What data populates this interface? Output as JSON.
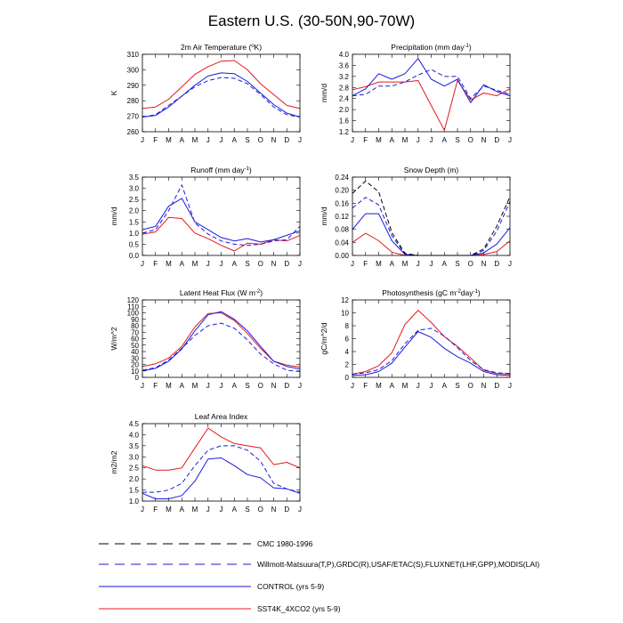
{
  "title": "Eastern U.S. (30-50N,90-70W)",
  "colors": {
    "red": "#e31a1c",
    "blue": "#1a1adf",
    "black": "#000000"
  },
  "months": [
    "J",
    "F",
    "M",
    "A",
    "M",
    "J",
    "J",
    "A",
    "S",
    "O",
    "N",
    "D",
    "J"
  ],
  "legend": [
    {
      "label": "CMC 1980-1996",
      "color": "#000000",
      "dashed": true
    },
    {
      "label": "Willmott-Matsuura(T,P),GRDC(R),USAF/ETAC(S),FLUXNET(LHF,GPP),MODIS(LAI)",
      "color": "#1a1adf",
      "dashed": true
    },
    {
      "label": "CONTROL (yrs 5-9)",
      "color": "#1a1adf",
      "dashed": false
    },
    {
      "label": "SST4K_4XCO2 (yrs 5-9)",
      "color": "#e31a1c",
      "dashed": false
    }
  ],
  "chart_data": [
    {
      "type": "line",
      "title": "2m Air Temperature (",
      "title_sup": "o",
      "title_tail": "K)",
      "ylabel": "K",
      "ylim": [
        260,
        310
      ],
      "yticks": [
        260,
        270,
        280,
        290,
        300,
        310
      ],
      "series": [
        {
          "name": "SST4K_4XCO2 (yrs 5-9)",
          "color": "red",
          "dashed": false,
          "values": [
            275,
            276,
            281,
            289,
            297,
            302,
            305.5,
            306,
            300,
            291,
            284,
            277,
            275
          ]
        },
        {
          "name": "CONTROL (yrs 5-9)",
          "color": "blue",
          "dashed": false,
          "values": [
            269.5,
            270.5,
            276,
            283,
            290,
            296,
            298,
            297.5,
            292.5,
            285,
            277.5,
            272,
            269.5
          ]
        },
        {
          "name": "Willmott-Matsuura",
          "color": "blue",
          "dashed": true,
          "values": [
            269.5,
            271,
            277,
            283,
            289,
            293,
            295,
            294.5,
            291,
            284,
            276,
            271,
            269.5
          ]
        }
      ]
    },
    {
      "type": "line",
      "title": "Precipitation (mm day",
      "title_sup": "-1",
      "title_tail": ")",
      "ylabel": "mm/d",
      "ylim": [
        1.2,
        4.0
      ],
      "yticks": [
        1.2,
        1.6,
        2.0,
        2.4,
        2.8,
        3.2,
        3.6,
        4.0
      ],
      "series": [
        {
          "name": "SST4K_4XCO2 (yrs 5-9)",
          "color": "red",
          "dashed": false,
          "values": [
            2.72,
            2.83,
            3.0,
            3.0,
            3.0,
            3.05,
            2.15,
            1.25,
            3.05,
            2.35,
            2.6,
            2.5,
            2.75
          ]
        },
        {
          "name": "CONTROL (yrs 5-9)",
          "color": "blue",
          "dashed": false,
          "values": [
            2.5,
            2.75,
            3.3,
            3.1,
            3.3,
            3.85,
            3.1,
            2.85,
            3.1,
            2.25,
            2.9,
            2.65,
            2.5
          ]
        },
        {
          "name": "Willmott-Matsuura",
          "color": "blue",
          "dashed": true,
          "values": [
            2.5,
            2.55,
            2.85,
            2.85,
            3.0,
            3.25,
            3.45,
            3.2,
            3.2,
            2.4,
            2.85,
            2.7,
            2.55
          ]
        }
      ]
    },
    {
      "type": "line",
      "title": "Runoff (mm day",
      "title_sup": "-1",
      "title_tail": ")",
      "ylabel": "mm/d",
      "ylim": [
        0.0,
        3.5
      ],
      "yticks": [
        0.0,
        0.5,
        1.0,
        1.5,
        2.0,
        2.5,
        3.0,
        3.5
      ],
      "series": [
        {
          "name": "SST4K_4XCO2 (yrs 5-9)",
          "color": "red",
          "dashed": false,
          "values": [
            0.95,
            1.05,
            1.7,
            1.65,
            1.0,
            0.75,
            0.45,
            0.2,
            0.55,
            0.5,
            0.7,
            0.65,
            0.9
          ]
        },
        {
          "name": "CONTROL (yrs 5-9)",
          "color": "blue",
          "dashed": false,
          "values": [
            1.15,
            1.3,
            2.2,
            2.55,
            1.5,
            1.15,
            0.8,
            0.65,
            0.75,
            0.6,
            0.7,
            0.9,
            1.1
          ]
        },
        {
          "name": "GRDC",
          "color": "blue",
          "dashed": true,
          "values": [
            1.0,
            1.15,
            2.0,
            3.15,
            1.45,
            0.95,
            0.65,
            0.5,
            0.45,
            0.5,
            0.65,
            0.7,
            1.3
          ]
        }
      ]
    },
    {
      "type": "line",
      "title": "Snow Depth (m)",
      "title_sup": "",
      "title_tail": "",
      "ylabel": "mm/d",
      "ylim": [
        0.0,
        0.24
      ],
      "yticks": [
        0.0,
        0.04,
        0.08,
        0.12,
        0.16,
        0.2,
        0.24
      ],
      "series": [
        {
          "name": "SST4K_4XCO2 (yrs 5-9)",
          "color": "red",
          "dashed": false,
          "values": [
            0.04,
            0.068,
            0.045,
            0.01,
            0.0,
            0.0,
            0.0,
            0.0,
            0.0,
            0.0,
            0.003,
            0.012,
            0.045
          ]
        },
        {
          "name": "CONTROL (yrs 5-9)",
          "color": "blue",
          "dashed": false,
          "values": [
            0.08,
            0.128,
            0.128,
            0.045,
            0.003,
            0.0,
            0.0,
            0.0,
            0.0,
            0.0,
            0.008,
            0.035,
            0.085
          ]
        },
        {
          "name": "USAF/ETAC",
          "color": "blue",
          "dashed": true,
          "values": [
            0.145,
            0.178,
            0.155,
            0.06,
            0.005,
            0.0,
            0.0,
            0.0,
            0.0,
            0.0,
            0.015,
            0.075,
            0.165
          ]
        },
        {
          "name": "CMC 1980-1996",
          "color": "black",
          "dashed": true,
          "values": [
            0.19,
            0.228,
            0.195,
            0.07,
            0.006,
            0.0,
            0.0,
            0.0,
            0.0,
            0.0,
            0.02,
            0.09,
            0.18
          ]
        }
      ]
    },
    {
      "type": "line",
      "title": "Latent Heat Flux (W m",
      "title_sup": "-2",
      "title_tail": ")",
      "ylabel": "W/m^2",
      "ylim": [
        0,
        120
      ],
      "yticks": [
        0,
        10,
        20,
        30,
        40,
        50,
        60,
        70,
        80,
        90,
        100,
        110,
        120
      ],
      "series": [
        {
          "name": "SST4K_4XCO2 (yrs 5-9)",
          "color": "red",
          "dashed": false,
          "values": [
            17,
            21,
            30,
            48,
            78,
            99,
            100,
            88,
            68,
            45,
            25,
            19,
            16
          ]
        },
        {
          "name": "CONTROL (yrs 5-9)",
          "color": "blue",
          "dashed": false,
          "values": [
            10,
            14,
            25,
            44,
            72,
            97,
            102,
            90,
            72,
            48,
            25,
            17,
            13
          ]
        },
        {
          "name": "FLUXNET",
          "color": "blue",
          "dashed": true,
          "values": [
            11,
            15,
            27,
            45,
            65,
            80,
            84,
            76,
            58,
            36,
            21,
            11,
            9
          ]
        }
      ]
    },
    {
      "type": "line",
      "title": "Photosynthesis (gC m",
      "title_sup": "-2",
      "title_tail": "day",
      "title_sup2": "-1",
      "title_tail2": ")",
      "ylabel": "gC/m^2/d",
      "ylim": [
        0,
        12
      ],
      "yticks": [
        0,
        2,
        4,
        6,
        8,
        10,
        12
      ],
      "series": [
        {
          "name": "SST4K_4XCO2 (yrs 5-9)",
          "color": "red",
          "dashed": false,
          "values": [
            0.5,
            0.9,
            1.8,
            3.8,
            8.2,
            10.4,
            8.5,
            6.3,
            4.8,
            3.0,
            1.1,
            0.6,
            0.5
          ]
        },
        {
          "name": "CONTROL (yrs 5-9)",
          "color": "blue",
          "dashed": false,
          "values": [
            0.3,
            0.4,
            0.9,
            2.2,
            4.7,
            7.1,
            6.2,
            4.5,
            3.2,
            2.2,
            0.9,
            0.4,
            0.3
          ]
        },
        {
          "name": "FLUXNET",
          "color": "blue",
          "dashed": true,
          "values": [
            0.5,
            0.7,
            1.2,
            2.6,
            5.2,
            7.3,
            7.6,
            6.4,
            4.6,
            2.6,
            1.2,
            0.7,
            0.6
          ]
        }
      ]
    },
    {
      "type": "line",
      "title": "Leaf Area Index",
      "title_sup": "",
      "title_tail": "",
      "ylabel": "m2/m2",
      "ylim": [
        1.0,
        4.5
      ],
      "yticks": [
        1.0,
        1.5,
        2.0,
        2.5,
        3.0,
        3.5,
        4.0,
        4.5
      ],
      "series": [
        {
          "name": "SST4K_4XCO2 (yrs 5-9)",
          "color": "red",
          "dashed": false,
          "values": [
            2.6,
            2.4,
            2.4,
            2.5,
            3.4,
            4.3,
            3.9,
            3.6,
            3.5,
            3.4,
            2.65,
            2.75,
            2.5
          ]
        },
        {
          "name": "CONTROL (yrs 5-9)",
          "color": "blue",
          "dashed": false,
          "values": [
            1.35,
            1.1,
            1.1,
            1.25,
            1.9,
            2.9,
            2.95,
            2.6,
            2.2,
            2.05,
            1.6,
            1.55,
            1.35
          ]
        },
        {
          "name": "MODIS",
          "color": "blue",
          "dashed": true,
          "values": [
            1.4,
            1.4,
            1.5,
            1.8,
            2.6,
            3.3,
            3.5,
            3.5,
            3.3,
            2.8,
            1.8,
            1.55,
            1.4
          ]
        }
      ]
    }
  ]
}
